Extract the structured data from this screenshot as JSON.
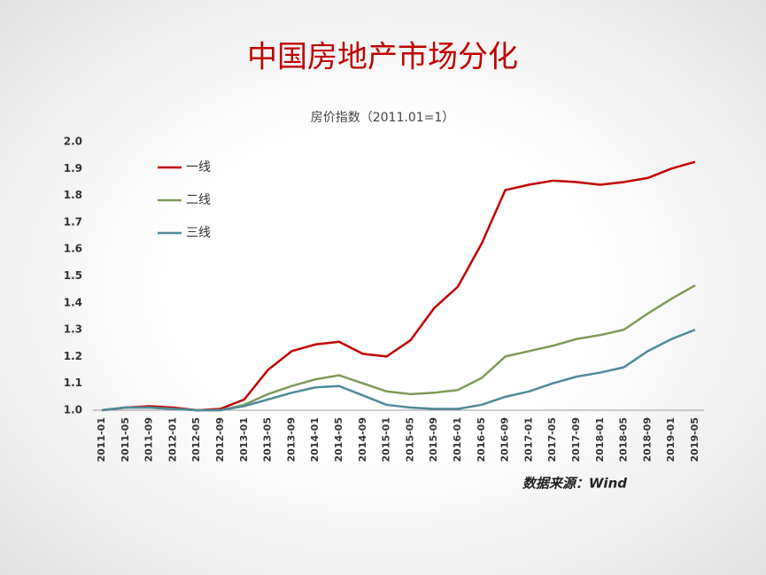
{
  "chart_data": {
    "type": "line",
    "title": "中国房地产市场分化",
    "subtitle": "房价指数（2011.01=1）",
    "source": "数据来源：Wind",
    "categories": [
      "2011-01",
      "2011-05",
      "2011-09",
      "2012-01",
      "2012-05",
      "2012-09",
      "2013-01",
      "2013-05",
      "2013-09",
      "2014-01",
      "2014-05",
      "2014-09",
      "2015-01",
      "2015-05",
      "2015-09",
      "2016-01",
      "2016-05",
      "2016-09",
      "2017-01",
      "2017-05",
      "2017-09",
      "2018-01",
      "2018-05",
      "2018-09",
      "2019-01",
      "2019-05"
    ],
    "series": [
      {
        "name": "一线",
        "color": "#c00000",
        "values": [
          1.0,
          1.01,
          1.015,
          1.01,
          1.0,
          1.005,
          1.04,
          1.15,
          1.22,
          1.245,
          1.255,
          1.21,
          1.2,
          1.26,
          1.38,
          1.46,
          1.62,
          1.82,
          1.84,
          1.855,
          1.85,
          1.84,
          1.85,
          1.865,
          1.9,
          1.925
        ]
      },
      {
        "name": "二线",
        "color": "#7f9a5a",
        "values": [
          1.0,
          1.01,
          1.01,
          1.005,
          1.0,
          1.0,
          1.02,
          1.06,
          1.09,
          1.115,
          1.13,
          1.1,
          1.07,
          1.06,
          1.065,
          1.075,
          1.12,
          1.2,
          1.22,
          1.24,
          1.265,
          1.28,
          1.3,
          1.36,
          1.415,
          1.465
        ]
      },
      {
        "name": "三线",
        "color": "#4f8a9a",
        "values": [
          1.0,
          1.01,
          1.01,
          1.005,
          1.0,
          1.0,
          1.015,
          1.04,
          1.065,
          1.085,
          1.09,
          1.055,
          1.02,
          1.01,
          1.005,
          1.005,
          1.02,
          1.05,
          1.07,
          1.1,
          1.125,
          1.14,
          1.16,
          1.22,
          1.265,
          1.3
        ]
      }
    ],
    "ylim": [
      1.0,
      2.0
    ],
    "yticks": [
      {
        "value": 1.0,
        "label": "1.0"
      },
      1.1,
      1.2,
      1.3,
      1.4,
      1.5,
      1.6,
      1.7,
      1.8,
      1.9,
      {
        "value": 2.0,
        "label": "2.0"
      }
    ],
    "grid": false,
    "legend": "upper-left"
  }
}
